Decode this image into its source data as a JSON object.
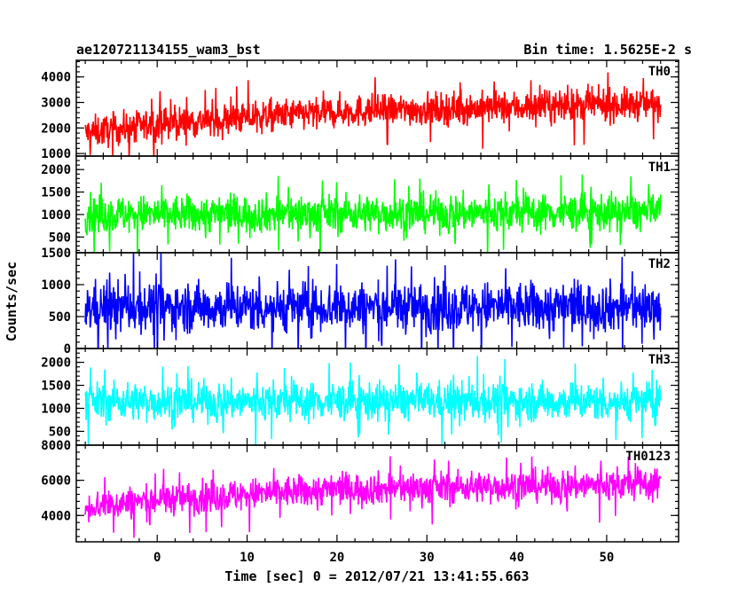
{
  "chart_data": {
    "type": "line",
    "title_left": "ae120721134155_wam3_bst",
    "title_right": "Bin time: 1.5625E-2 s",
    "xlabel": "Time [sec] 0 = 2012/07/21 13:41:55.663",
    "ylabel": "Counts/sec",
    "xlim": [
      -9,
      58
    ],
    "data_range": [
      -8,
      56
    ],
    "x_ticks": [
      0,
      10,
      20,
      30,
      40,
      50
    ],
    "panels": [
      {
        "name": "TH0",
        "color": "#ff0000",
        "ylim": [
          900,
          4650
        ],
        "y_ticks": [
          1000,
          2000,
          3000,
          4000
        ],
        "baseline_trend": [
          [
            -8,
            1800
          ],
          [
            0,
            2150
          ],
          [
            20,
            2650
          ],
          [
            56,
            2950
          ]
        ],
        "noise": 450
      },
      {
        "name": "TH1",
        "color": "#00ff00",
        "ylim": [
          150,
          2300
        ],
        "y_ticks": [
          500,
          1000,
          1500,
          2000
        ],
        "baseline_trend": [
          [
            -8,
            1000
          ],
          [
            56,
            1050
          ]
        ],
        "noise": 300
      },
      {
        "name": "TH2",
        "color": "#0000ff",
        "ylim": [
          0,
          1500
        ],
        "y_ticks": [
          0,
          500,
          1000,
          1500
        ],
        "baseline_trend": [
          [
            -8,
            650
          ],
          [
            56,
            650
          ]
        ],
        "noise": 280
      },
      {
        "name": "TH3",
        "color": "#00ffff",
        "ylim": [
          200,
          2300
        ],
        "y_ticks": [
          500,
          1000,
          1500,
          2000
        ],
        "baseline_trend": [
          [
            -8,
            1150
          ],
          [
            56,
            1150
          ]
        ],
        "noise": 300
      },
      {
        "name": "TH0123",
        "color": "#ff00ff",
        "ylim": [
          2500,
          8000
        ],
        "y_ticks": [
          4000,
          6000,
          8000
        ],
        "baseline_trend": [
          [
            -8,
            4500
          ],
          [
            0,
            4900
          ],
          [
            20,
            5500
          ],
          [
            56,
            5800
          ]
        ],
        "noise": 650
      }
    ]
  }
}
